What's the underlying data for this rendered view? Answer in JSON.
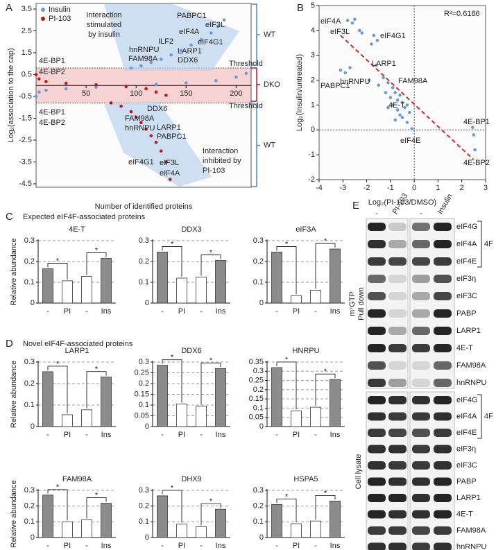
{
  "chart_data": [
    {
      "type": "scatter",
      "panel": "A",
      "ylabel": "Log₂(association to the cap)",
      "xlabel": "Number of identified proteins",
      "xlim": [
        0,
        215
      ],
      "ylim": [
        -4.5,
        3.5
      ],
      "xticks": [
        50,
        100,
        150,
        200
      ],
      "yticks": [
        -4.5,
        -3.5,
        -2.5,
        -1.5,
        -0.5,
        0.5,
        1.5,
        2.5,
        3.5
      ],
      "legend": "upper left",
      "thresholds": [
        0.8,
        -0.8
      ],
      "series": [
        {
          "name": "Insulin",
          "color": "#6b9bd8",
          "x": [
            0,
            3,
            10,
            30,
            60,
            90,
            120,
            150,
            180,
            200,
            210,
            null,
            95,
            105,
            115,
            125,
            135,
            145,
            155,
            165,
            175,
            182,
            188
          ],
          "values": [
            -0.5,
            -0.3,
            -0.22,
            -0.15,
            -0.08,
            -0.02,
            0.05,
            0.12,
            0.22,
            0.38,
            0.55,
            null,
            0.8,
            0.9,
            1.05,
            1.2,
            1.4,
            1.6,
            1.85,
            2.1,
            2.4,
            2.7,
            3
          ]
        },
        {
          "name": "PI-103",
          "color": "#c0141c",
          "x": [
            0,
            3,
            10,
            30,
            60,
            90,
            110,
            120,
            130,
            null,
            75,
            85,
            95,
            100,
            105,
            110,
            115,
            120,
            125,
            130,
            134
          ],
          "values": [
            0.5,
            0.3,
            0.18,
            0.1,
            0.03,
            -0.05,
            -0.15,
            -0.3,
            -0.45,
            null,
            -0.8,
            -0.95,
            -1.2,
            -1.45,
            -1.7,
            -2,
            -2.3,
            -2.6,
            -3,
            -3.5,
            -4.3
          ]
        }
      ],
      "annotations": [
        "PABPC1",
        "eIF3L",
        "eIF4A",
        "eIF4G1",
        "ILF2",
        "hnRNPU",
        "LARP1",
        "FAM98A",
        "DDX6",
        "Threshold",
        "Threshold",
        "4E-BP1",
        "4E-BP2",
        "4E-BP1",
        "4E-BP2",
        "DDX6",
        "FAM98A",
        "hnRNPU",
        "LARP1",
        "PABPC1",
        "eIF4G1",
        "eIF3L",
        "eIF4A"
      ],
      "callouts": [
        [
          "Interaction",
          "stimulated",
          "by insulin"
        ],
        [
          "Interaction",
          "inhibited by",
          "PI-103"
        ]
      ],
      "groups": [
        "WT",
        "DKO",
        "WT"
      ]
    },
    {
      "type": "scatter",
      "panel": "B",
      "xlabel": "Log₂(PI-103/DMSO)",
      "ylabel": "Log₂(Insulin/untreated)",
      "xlim": [
        -4,
        3
      ],
      "ylim": [
        -2,
        5
      ],
      "xticks": [
        -4,
        -3,
        -2,
        -1,
        0,
        1,
        2,
        3
      ],
      "yticks": [
        -2,
        -1,
        0,
        1,
        2,
        3,
        4,
        5
      ],
      "color": "#6b9bd8",
      "x": [
        -2.8,
        -2.6,
        -2.5,
        -2.3,
        -2.2,
        -1.7,
        -1.55,
        -1.8,
        -3.1,
        -2.9,
        -2.7,
        -1.6,
        -1.9,
        -1.5,
        -1.3,
        -1.1,
        -0.9,
        -0.8,
        -1,
        -0.7,
        -0.6,
        -0.5,
        -0.9,
        -0.4,
        -0.7,
        -1.2,
        -0.3,
        -0.6,
        -0.5,
        -0.2,
        -1.1,
        -0.8,
        -0.3,
        -0.1,
        2.45,
        2.5,
        2.55
      ],
      "values": [
        4.4,
        4.3,
        4.45,
        4,
        3.9,
        3.8,
        3.6,
        3.45,
        2.4,
        2.3,
        2.5,
        2.6,
        2,
        1.8,
        2.1,
        1.9,
        1.7,
        1.5,
        1.3,
        1.2,
        1.4,
        1.1,
        1,
        0.9,
        0.8,
        1.5,
        1,
        0.6,
        0.5,
        0.7,
        0.9,
        0.4,
        0.3,
        0.05,
        0.1,
        -0.2,
        -0.8
      ],
      "trendline": {
        "color": "#d62728",
        "x": [
          -3.1,
          2.5
        ],
        "values": [
          3.8,
          -1.2
        ]
      },
      "annotations": [
        "R²=0.6186",
        "eIF4A",
        "eIF3L",
        "eIF4G1",
        "LARP1",
        "PABPC1",
        "hnRNPU",
        "FAM98A",
        "4E-T",
        "eIF4E",
        "4E-BP1",
        "4E-BP2"
      ]
    },
    {
      "type": "bar",
      "title": "4E-T",
      "ylabel": "Relative abundance",
      "categories": [
        "-",
        "PI",
        "-",
        "Ins"
      ],
      "values": [
        0.165,
        0.107,
        0.128,
        0.215
      ],
      "colors": [
        "#8c8c8c",
        "#ffffff",
        "#ffffff",
        "#8c8c8c"
      ],
      "ylim": [
        0,
        0.3
      ],
      "yticks": [
        0,
        0.1,
        0.2,
        0.3
      ],
      "grid": true,
      "significance": [
        "*",
        "*"
      ]
    },
    {
      "type": "bar",
      "title": "DDX3",
      "categories": [
        "-",
        "PI",
        "-",
        "Ins"
      ],
      "values": [
        0.245,
        0.12,
        0.125,
        0.205
      ],
      "colors": [
        "#8c8c8c",
        "#ffffff",
        "#ffffff",
        "#8c8c8c"
      ],
      "ylim": [
        0,
        0.3
      ],
      "yticks": [
        0,
        0.1,
        0.2,
        0.3
      ],
      "grid": true,
      "significance": [
        "*",
        "*"
      ]
    },
    {
      "type": "bar",
      "title": "eIF3A",
      "categories": [
        "-",
        "PI",
        "-",
        "Ins"
      ],
      "values": [
        0.245,
        0.035,
        0.062,
        0.26
      ],
      "colors": [
        "#8c8c8c",
        "#ffffff",
        "#ffffff",
        "#8c8c8c"
      ],
      "ylim": [
        0,
        0.3
      ],
      "yticks": [
        0,
        0.1,
        0.2,
        0.3
      ],
      "grid": true,
      "significance": [
        "*",
        "*"
      ]
    },
    {
      "type": "bar",
      "title": "LARP1",
      "ylabel": "Relative abundance",
      "categories": [
        "-",
        "PI",
        "-",
        "Ins"
      ],
      "values": [
        0.255,
        0.055,
        0.078,
        0.23
      ],
      "colors": [
        "#8c8c8c",
        "#ffffff",
        "#ffffff",
        "#8c8c8c"
      ],
      "ylim": [
        0,
        0.3
      ],
      "yticks": [
        0,
        0.1,
        0.2,
        0.3
      ],
      "grid": true,
      "significance": [
        "*",
        "*"
      ]
    },
    {
      "type": "bar",
      "title": "DDX6",
      "categories": [
        "-",
        "PI",
        "-",
        "Ins"
      ],
      "values": [
        0.285,
        0.105,
        0.095,
        0.27
      ],
      "colors": [
        "#8c8c8c",
        "#ffffff",
        "#ffffff",
        "#8c8c8c"
      ],
      "ylim": [
        0,
        0.3
      ],
      "yticks": [
        0,
        0.05,
        0.1,
        0.15,
        0.2,
        0.25,
        0.3
      ],
      "grid": true,
      "significance": [
        "*",
        "*"
      ]
    },
    {
      "type": "bar",
      "title": "HNRPU",
      "categories": [
        "-",
        "PI",
        "-",
        "Ins"
      ],
      "values": [
        0.32,
        0.085,
        0.105,
        0.255
      ],
      "colors": [
        "#8c8c8c",
        "#ffffff",
        "#ffffff",
        "#8c8c8c"
      ],
      "ylim": [
        0,
        0.35
      ],
      "yticks": [
        0,
        0.05,
        0.1,
        0.15,
        0.2,
        0.25,
        0.3,
        0.35
      ],
      "grid": true,
      "significance": [
        "*",
        "*"
      ]
    },
    {
      "type": "bar",
      "title": "FAM98A",
      "ylabel": "Relative abundance",
      "categories": [
        "-",
        "PI",
        "-",
        "Ins"
      ],
      "values": [
        0.27,
        0.1,
        0.112,
        0.218
      ],
      "colors": [
        "#8c8c8c",
        "#ffffff",
        "#ffffff",
        "#8c8c8c"
      ],
      "ylim": [
        0,
        0.3
      ],
      "yticks": [
        0,
        0.1,
        0.2,
        0.3
      ],
      "grid": true,
      "significance": [
        "*",
        "*"
      ]
    },
    {
      "type": "bar",
      "title": "DHX9",
      "categories": [
        "-",
        "PI",
        "-",
        "Ins"
      ],
      "values": [
        0.265,
        0.085,
        0.068,
        0.18
      ],
      "colors": [
        "#8c8c8c",
        "#ffffff",
        "#ffffff",
        "#8c8c8c"
      ],
      "ylim": [
        0,
        0.3
      ],
      "yticks": [
        0,
        0.1,
        0.2,
        0.3
      ],
      "grid": true,
      "significance": [
        "*",
        "*"
      ]
    },
    {
      "type": "bar",
      "title": "HSPA5",
      "categories": [
        "-",
        "PI",
        "-",
        "Ins"
      ],
      "values": [
        0.21,
        0.088,
        0.105,
        0.232
      ],
      "colors": [
        "#8c8c8c",
        "#ffffff",
        "#ffffff",
        "#8c8c8c"
      ],
      "ylim": [
        0,
        0.3
      ],
      "yticks": [
        0,
        0.1,
        0.2,
        0.3
      ],
      "grid": true,
      "significance": [
        "*",
        "*"
      ]
    }
  ],
  "sections": [
    {
      "panel": "C",
      "title": "Expected eIF4F-associated proteins"
    },
    {
      "panel": "D",
      "title": "Novel eIF4F-associated proteins"
    }
  ],
  "blot": {
    "panel": "E",
    "lanes": [
      "-",
      "PI-103",
      "-",
      "Insulin"
    ],
    "sections": [
      {
        "label": [
          "m⁷GTP",
          "Pull down"
        ],
        "bracket": "4F",
        "rows": [
          "eIF4G",
          "eIF4A",
          "eIF4E",
          "eIF3η",
          "eIF3C",
          "PABP",
          "LARP1",
          "4E-T",
          "FAM98A",
          "hnRNPU"
        ]
      },
      {
        "label": [
          "Cell lysate"
        ],
        "bracket": "4F",
        "rows": [
          "eIF4G",
          "eIF4A",
          "eIF4E",
          "eIF3η",
          "eIF3C",
          "PABP",
          "LARP1",
          "4E-T",
          "FAM98A",
          "hnRNPU"
        ]
      }
    ]
  }
}
